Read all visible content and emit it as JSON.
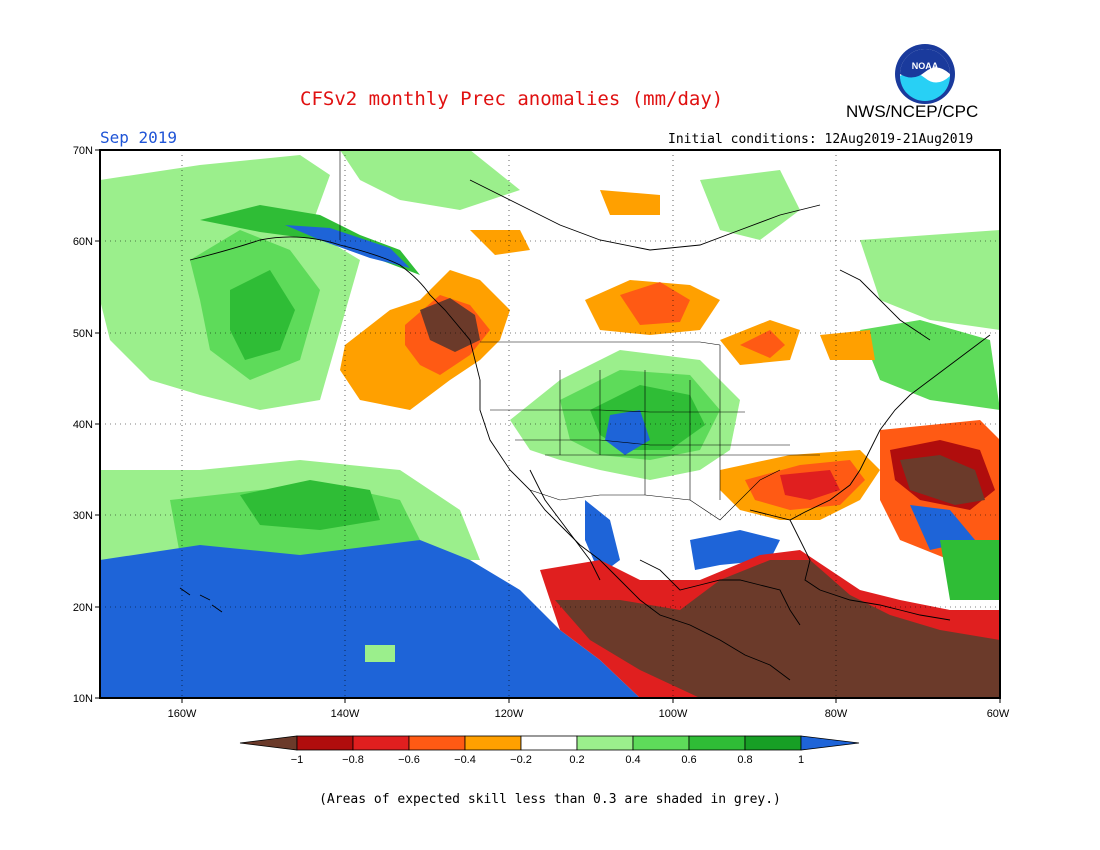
{
  "header": {
    "title": "CFSv2 monthly Prec anomalies (mm/day)",
    "month": "Sep 2019",
    "initial_conditions": "Initial conditions: 12Aug2019-21Aug2019",
    "organization": "NWS/NCEP/CPC",
    "logo_text": "NOAA"
  },
  "map": {
    "lat_labels": [
      "70N",
      "60N",
      "50N",
      "40N",
      "30N",
      "20N",
      "10N"
    ],
    "lon_labels": [
      "160W",
      "140W",
      "120W",
      "100W",
      "80W",
      "60W"
    ],
    "lat_range": [
      10,
      70
    ],
    "lon_range": [
      -170,
      -60
    ]
  },
  "colorbar": {
    "labels": [
      "−1",
      "−0.8",
      "−0.6",
      "−0.4",
      "−0.2",
      "0.2",
      "0.4",
      "0.6",
      "0.8",
      "1"
    ],
    "colors": [
      "#6b3a2a",
      "#b00d0d",
      "#e01f1f",
      "#ff5a14",
      "#ffa000",
      "#ffffff",
      "#9bef8c",
      "#5edb5a",
      "#2fbd36",
      "#179f25",
      "#1e64d8"
    ]
  },
  "footer": {
    "note": "(Areas of expected skill less than 0.3 are shaded in grey.)"
  }
}
